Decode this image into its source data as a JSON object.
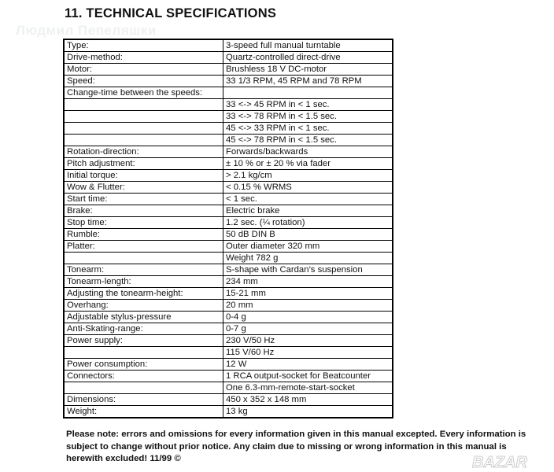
{
  "watermark": "Людмил Пепеляшки",
  "title": "11. TECHNICAL SPECIFICATIONS",
  "rows": [
    [
      "Type:",
      "3-speed full manual turntable"
    ],
    [
      "Drive-method:",
      "Quartz-controlled direct-drive"
    ],
    [
      "Motor:",
      "Brushless 18 V DC-motor"
    ],
    [
      "Speed:",
      "33 1/3 RPM, 45 RPM and 78 RPM"
    ],
    [
      "Change-time between the speeds:",
      ""
    ],
    [
      "",
      "33 <-> 45 RPM in < 1 sec."
    ],
    [
      "",
      "33 <-> 78 RPM in < 1.5 sec."
    ],
    [
      "",
      "45 <-> 33 RPM in < 1 sec."
    ],
    [
      "",
      "45 <-> 78 RPM in < 1.5 sec."
    ],
    [
      "Rotation-direction:",
      "Forwards/backwards"
    ],
    [
      "Pitch adjustment:",
      "± 10 % or ± 20 % via fader"
    ],
    [
      "Initial torque:",
      "> 2.1 kg/cm"
    ],
    [
      "Wow & Flutter:",
      "< 0.15 % WRMS"
    ],
    [
      "Start time:",
      "< 1 sec."
    ],
    [
      "Brake:",
      "Electric brake"
    ],
    [
      "Stop time:",
      "1.2 sec. (¼ rotation)"
    ],
    [
      "Rumble:",
      "50 dB DIN B"
    ],
    [
      "Platter:",
      "Outer diameter 320 mm"
    ],
    [
      "",
      "Weight 782 g"
    ],
    [
      "Tonearm:",
      "S-shape with Cardan’s suspension"
    ],
    [
      "Tonearm-length:",
      "234 mm"
    ],
    [
      "Adjusting the tonearm-height:",
      "15-21 mm"
    ],
    [
      "Overhang:",
      "20 mm"
    ],
    [
      "Adjustable stylus-pressure",
      "0-4 g"
    ],
    [
      "Anti-Skating-range:",
      "0-7 g"
    ],
    [
      "Power supply:",
      "230 V/50 Hz"
    ],
    [
      "",
      "115 V/60 Hz"
    ],
    [
      "Power consumption:",
      "12 W"
    ],
    [
      "Connectors:",
      "1 RCA output-socket for Beatcounter"
    ],
    [
      "",
      "One 6.3-mm-remote-start-socket"
    ],
    [
      "Dimensions:",
      "450 x 352 x 148 mm"
    ],
    [
      "Weight:",
      "13 kg"
    ]
  ],
  "note": "Please note: errors and omissions for every information given in this manual excepted. Every information is subject to change without prior notice. Any claim due to missing or wrong information in this manual is herewith excluded!  11/99  ©",
  "logo": "BAZAR"
}
